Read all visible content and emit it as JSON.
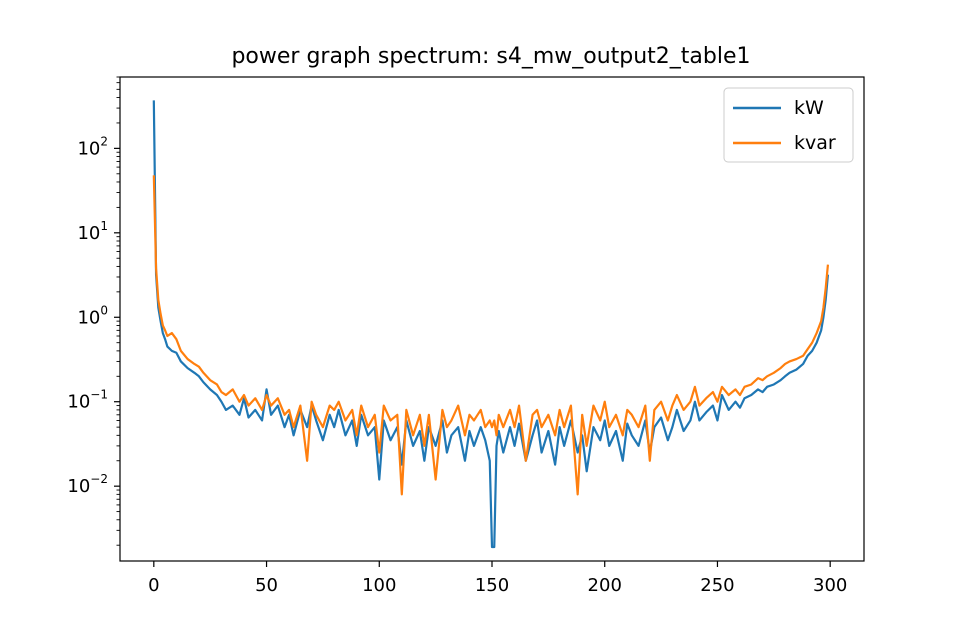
{
  "chart_data": {
    "type": "line",
    "title": "power graph spectrum: s4_mw_output2_table1",
    "xlabel": "",
    "ylabel": "",
    "xlim": [
      -15,
      315
    ],
    "ylim": [
      0.0013,
      700
    ],
    "yscale": "log",
    "x_ticks": [
      0,
      50,
      100,
      150,
      200,
      250,
      300
    ],
    "x_tick_labels": [
      "0",
      "50",
      "100",
      "150",
      "200",
      "250",
      "300"
    ],
    "y_ticks": [
      0.01,
      0.1,
      1,
      10,
      100
    ],
    "y_tick_labels": [
      {
        "base": "10",
        "exp": "−2"
      },
      {
        "base": "10",
        "exp": "−1"
      },
      {
        "base": "10",
        "exp": "0"
      },
      {
        "base": "10",
        "exp": "1"
      },
      {
        "base": "10",
        "exp": "2"
      }
    ],
    "grid": false,
    "legend_position": "top-right",
    "series": [
      {
        "name": "kW",
        "color": "#1f77b4",
        "x": [
          0,
          1,
          2,
          3,
          4,
          5,
          6,
          8,
          10,
          12,
          15,
          18,
          20,
          22,
          25,
          28,
          30,
          32,
          35,
          38,
          40,
          42,
          45,
          48,
          50,
          52,
          55,
          58,
          60,
          62,
          65,
          68,
          70,
          72,
          75,
          78,
          80,
          82,
          85,
          88,
          90,
          92,
          95,
          98,
          100,
          102,
          105,
          108,
          110,
          112,
          115,
          118,
          120,
          122,
          125,
          128,
          130,
          132,
          135,
          138,
          140,
          142,
          145,
          147,
          149,
          150,
          151,
          152,
          153,
          155,
          158,
          160,
          162,
          165,
          168,
          170,
          172,
          175,
          178,
          180,
          182,
          185,
          188,
          190,
          192,
          195,
          198,
          200,
          202,
          205,
          208,
          210,
          212,
          215,
          218,
          220,
          222,
          225,
          228,
          230,
          232,
          235,
          238,
          240,
          242,
          245,
          248,
          250,
          252,
          255,
          258,
          260,
          262,
          265,
          268,
          270,
          272,
          275,
          278,
          280,
          282,
          285,
          288,
          290,
          292,
          294,
          296,
          297,
          298,
          299
        ],
        "y": [
          370,
          3.2,
          1.3,
          0.9,
          0.65,
          0.55,
          0.45,
          0.4,
          0.38,
          0.3,
          0.25,
          0.22,
          0.2,
          0.17,
          0.14,
          0.12,
          0.1,
          0.08,
          0.09,
          0.07,
          0.11,
          0.065,
          0.08,
          0.06,
          0.14,
          0.07,
          0.09,
          0.05,
          0.07,
          0.04,
          0.08,
          0.05,
          0.09,
          0.06,
          0.035,
          0.07,
          0.05,
          0.08,
          0.04,
          0.06,
          0.03,
          0.07,
          0.04,
          0.05,
          0.012,
          0.06,
          0.035,
          0.05,
          0.018,
          0.06,
          0.03,
          0.045,
          0.02,
          0.05,
          0.03,
          0.06,
          0.025,
          0.04,
          0.05,
          0.02,
          0.045,
          0.03,
          0.05,
          0.035,
          0.02,
          0.0019,
          0.0019,
          0.03,
          0.045,
          0.025,
          0.05,
          0.03,
          0.055,
          0.02,
          0.04,
          0.06,
          0.025,
          0.045,
          0.018,
          0.05,
          0.03,
          0.06,
          0.025,
          0.04,
          0.015,
          0.05,
          0.035,
          0.06,
          0.03,
          0.045,
          0.02,
          0.055,
          0.04,
          0.03,
          0.06,
          0.025,
          0.05,
          0.065,
          0.035,
          0.05,
          0.08,
          0.045,
          0.06,
          0.1,
          0.06,
          0.075,
          0.09,
          0.06,
          0.12,
          0.08,
          0.1,
          0.085,
          0.11,
          0.12,
          0.14,
          0.13,
          0.15,
          0.16,
          0.18,
          0.2,
          0.22,
          0.24,
          0.28,
          0.35,
          0.4,
          0.5,
          0.7,
          1.0,
          1.6,
          3.2
        ]
      },
      {
        "name": "kvar",
        "color": "#ff7f0e",
        "x": [
          0,
          1,
          2,
          3,
          4,
          5,
          6,
          8,
          10,
          12,
          15,
          18,
          20,
          22,
          25,
          28,
          30,
          32,
          35,
          38,
          40,
          42,
          45,
          48,
          50,
          52,
          55,
          58,
          60,
          62,
          65,
          68,
          70,
          72,
          75,
          78,
          80,
          82,
          85,
          88,
          90,
          92,
          95,
          98,
          100,
          102,
          105,
          108,
          110,
          112,
          115,
          118,
          120,
          122,
          125,
          128,
          130,
          132,
          135,
          138,
          140,
          142,
          145,
          147,
          149,
          150,
          151,
          152,
          153,
          155,
          158,
          160,
          162,
          165,
          168,
          170,
          172,
          175,
          178,
          180,
          182,
          185,
          188,
          190,
          192,
          195,
          198,
          200,
          202,
          205,
          208,
          210,
          212,
          215,
          218,
          220,
          222,
          225,
          228,
          230,
          232,
          235,
          238,
          240,
          242,
          245,
          248,
          250,
          252,
          255,
          258,
          260,
          262,
          265,
          268,
          270,
          272,
          275,
          278,
          280,
          282,
          285,
          288,
          290,
          292,
          294,
          296,
          297,
          298,
          299
        ],
        "y": [
          48,
          3.8,
          1.6,
          1.1,
          0.8,
          0.7,
          0.6,
          0.65,
          0.55,
          0.4,
          0.32,
          0.28,
          0.26,
          0.22,
          0.18,
          0.16,
          0.13,
          0.12,
          0.14,
          0.1,
          0.12,
          0.09,
          0.11,
          0.08,
          0.12,
          0.09,
          0.11,
          0.07,
          0.08,
          0.05,
          0.09,
          0.02,
          0.1,
          0.07,
          0.05,
          0.09,
          0.08,
          0.1,
          0.06,
          0.08,
          0.04,
          0.09,
          0.05,
          0.07,
          0.025,
          0.09,
          0.06,
          0.07,
          0.008,
          0.08,
          0.04,
          0.07,
          0.03,
          0.07,
          0.012,
          0.08,
          0.05,
          0.06,
          0.09,
          0.04,
          0.07,
          0.06,
          0.08,
          0.05,
          0.06,
          0.05,
          0.06,
          0.04,
          0.07,
          0.05,
          0.08,
          0.05,
          0.09,
          0.02,
          0.07,
          0.08,
          0.05,
          0.07,
          0.04,
          0.08,
          0.05,
          0.09,
          0.008,
          0.07,
          0.03,
          0.09,
          0.06,
          0.1,
          0.05,
          0.07,
          0.04,
          0.08,
          0.07,
          0.05,
          0.09,
          0.02,
          0.08,
          0.1,
          0.06,
          0.09,
          0.12,
          0.08,
          0.1,
          0.15,
          0.09,
          0.11,
          0.13,
          0.1,
          0.15,
          0.12,
          0.14,
          0.12,
          0.15,
          0.16,
          0.19,
          0.18,
          0.2,
          0.22,
          0.25,
          0.28,
          0.3,
          0.32,
          0.35,
          0.42,
          0.5,
          0.65,
          0.9,
          1.3,
          2.2,
          4.2
        ]
      }
    ]
  }
}
